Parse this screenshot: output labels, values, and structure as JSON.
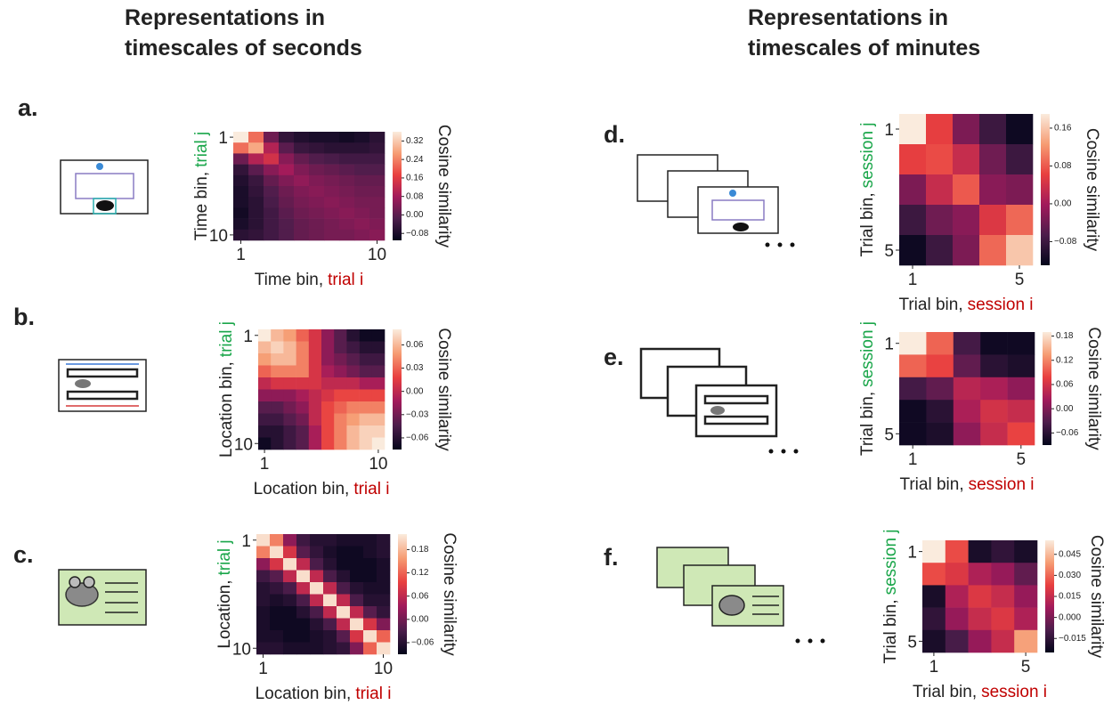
{
  "headers": [
    [
      "Representations in",
      "timescales of seconds"
    ],
    [
      "Representations in",
      "timescales of minutes"
    ]
  ],
  "colormap": [
    "#03051a",
    "#4c1d4b",
    "#a11a5b",
    "#e83f3f",
    "#f69c73",
    "#faebdd"
  ],
  "chart_data": [
    {
      "type": "heatmap",
      "panel": "a.",
      "xlabel": [
        "Time bin,",
        "trial i"
      ],
      "ylabel": [
        "Time bin,",
        "trial j"
      ],
      "xlabel_colors": [
        "#222222",
        "#c00000"
      ],
      "ylabel_colors": [
        "#222222",
        "#1aa64a"
      ],
      "colorbar_label": "Cosine similarity",
      "xlim": [
        0.5,
        10.5
      ],
      "ylim": [
        10.5,
        0.5
      ],
      "xticks": [
        1,
        10
      ],
      "yticks": [
        1,
        10
      ],
      "zlim": [
        -0.11,
        0.36
      ],
      "zticks": [
        0.32,
        0.24,
        0.16,
        0.08,
        {
          "value": 0,
          "label": "0.00"
        },
        {
          "value": -0.08,
          "label": "−0.08"
        }
      ],
      "values": [
        [
          0.36,
          0.22,
          0.02,
          -0.05,
          -0.07,
          -0.08,
          -0.08,
          -0.09,
          -0.08,
          -0.06
        ],
        [
          0.22,
          0.28,
          0.1,
          0.0,
          -0.04,
          -0.05,
          -0.06,
          -0.06,
          -0.06,
          -0.05
        ],
        [
          0.02,
          0.1,
          0.14,
          0.05,
          0.01,
          -0.01,
          -0.02,
          -0.03,
          -0.03,
          -0.03
        ],
        [
          -0.05,
          0.0,
          0.05,
          0.08,
          0.04,
          0.02,
          0.01,
          0.0,
          -0.01,
          -0.01
        ],
        [
          -0.07,
          -0.04,
          0.01,
          0.04,
          0.06,
          0.04,
          0.03,
          0.02,
          0.01,
          0.01
        ],
        [
          -0.08,
          -0.05,
          -0.01,
          0.02,
          0.04,
          0.05,
          0.04,
          0.03,
          0.02,
          0.02
        ],
        [
          -0.08,
          -0.06,
          -0.02,
          0.01,
          0.03,
          0.04,
          0.05,
          0.04,
          0.03,
          0.03
        ],
        [
          -0.09,
          -0.06,
          -0.03,
          0.0,
          0.02,
          0.03,
          0.04,
          0.05,
          0.04,
          0.03
        ],
        [
          -0.08,
          -0.06,
          -0.03,
          -0.01,
          0.01,
          0.02,
          0.03,
          0.04,
          0.05,
          0.04
        ],
        [
          -0.06,
          -0.05,
          -0.03,
          -0.01,
          0.01,
          0.02,
          0.03,
          0.03,
          0.04,
          0.05
        ]
      ]
    },
    {
      "type": "heatmap",
      "panel": "b.",
      "xlabel": [
        "Location bin,",
        "trial i"
      ],
      "ylabel": [
        "Location bin,",
        "trial j"
      ],
      "xlabel_colors": [
        "#222222",
        "#c00000"
      ],
      "ylabel_colors": [
        "#222222",
        "#1aa64a"
      ],
      "colorbar_label": "Cosine similarity",
      "xlim": [
        0.5,
        10.5
      ],
      "ylim": [
        10.5,
        0.5
      ],
      "xticks": [
        1,
        10
      ],
      "yticks": [
        1,
        10
      ],
      "zlim": [
        -0.075,
        0.08
      ],
      "zticks": [
        0.06,
        0.03,
        {
          "value": 0,
          "label": "0.00"
        },
        {
          "value": -0.03,
          "label": "−0.03"
        },
        {
          "value": -0.06,
          "label": "−0.06"
        }
      ],
      "values": [
        [
          0.08,
          0.06,
          0.05,
          0.03,
          0.01,
          -0.02,
          -0.04,
          -0.06,
          -0.07,
          -0.07
        ],
        [
          0.06,
          0.07,
          0.06,
          0.04,
          0.01,
          -0.02,
          -0.04,
          -0.05,
          -0.06,
          -0.06
        ],
        [
          0.05,
          0.06,
          0.06,
          0.04,
          0.01,
          -0.02,
          -0.03,
          -0.04,
          -0.05,
          -0.05
        ],
        [
          0.03,
          0.04,
          0.04,
          0.04,
          0.01,
          -0.01,
          -0.02,
          -0.03,
          -0.04,
          -0.04
        ],
        [
          0.0,
          0.01,
          0.01,
          0.01,
          0.01,
          0.0,
          0.0,
          0.0,
          -0.01,
          -0.01
        ],
        [
          -0.02,
          -0.02,
          -0.02,
          -0.01,
          0.0,
          0.01,
          0.02,
          0.02,
          0.02,
          0.02
        ],
        [
          -0.04,
          -0.04,
          -0.03,
          -0.02,
          0.0,
          0.02,
          0.03,
          0.04,
          0.04,
          0.04
        ],
        [
          -0.05,
          -0.05,
          -0.04,
          -0.03,
          0.0,
          0.02,
          0.04,
          0.05,
          0.06,
          0.06
        ],
        [
          -0.06,
          -0.06,
          -0.05,
          -0.04,
          -0.01,
          0.02,
          0.04,
          0.06,
          0.07,
          0.07
        ],
        [
          -0.07,
          -0.06,
          -0.05,
          -0.04,
          -0.01,
          0.02,
          0.04,
          0.06,
          0.07,
          0.08
        ]
      ]
    },
    {
      "type": "heatmap",
      "panel": "c.",
      "xlabel": [
        "Location bin,",
        "trial i"
      ],
      "ylabel": [
        "Location,",
        "trial j"
      ],
      "xlabel_colors": [
        "#222222",
        "#c00000"
      ],
      "ylabel_colors": [
        "#222222",
        "#1aa64a"
      ],
      "colorbar_label": "Cosine similarity",
      "xlim": [
        0.5,
        10.5
      ],
      "ylim": [
        10.5,
        0.5
      ],
      "xticks": [
        1,
        10
      ],
      "yticks": [
        1,
        10
      ],
      "zlim": [
        -0.09,
        0.22
      ],
      "zticks": [
        0.18,
        0.12,
        0.06,
        {
          "value": 0,
          "label": "0.00"
        },
        {
          "value": -0.06,
          "label": "−0.06"
        }
      ],
      "values": [
        [
          0.21,
          0.14,
          0.02,
          -0.04,
          -0.06,
          -0.06,
          -0.07,
          -0.07,
          -0.07,
          -0.06
        ],
        [
          0.14,
          0.21,
          0.08,
          -0.02,
          -0.05,
          -0.07,
          -0.08,
          -0.08,
          -0.07,
          -0.06
        ],
        [
          0.02,
          0.08,
          0.21,
          0.06,
          -0.03,
          -0.06,
          -0.08,
          -0.08,
          -0.08,
          -0.07
        ],
        [
          -0.04,
          -0.02,
          0.06,
          0.21,
          0.06,
          -0.03,
          -0.06,
          -0.08,
          -0.08,
          -0.07
        ],
        [
          -0.06,
          -0.05,
          -0.03,
          0.06,
          0.21,
          0.06,
          -0.03,
          -0.06,
          -0.07,
          -0.07
        ],
        [
          -0.06,
          -0.07,
          -0.06,
          -0.03,
          0.06,
          0.21,
          0.06,
          -0.03,
          -0.06,
          -0.06
        ],
        [
          -0.07,
          -0.08,
          -0.08,
          -0.06,
          -0.03,
          0.06,
          0.21,
          0.06,
          -0.02,
          -0.05
        ],
        [
          -0.07,
          -0.08,
          -0.08,
          -0.08,
          -0.06,
          -0.03,
          0.06,
          0.21,
          0.08,
          0.01
        ],
        [
          -0.07,
          -0.07,
          -0.08,
          -0.08,
          -0.07,
          -0.06,
          -0.02,
          0.08,
          0.21,
          0.12
        ],
        [
          -0.06,
          -0.06,
          -0.07,
          -0.07,
          -0.07,
          -0.06,
          -0.05,
          0.01,
          0.12,
          0.21
        ]
      ]
    },
    {
      "type": "heatmap",
      "panel": "d.",
      "xlabel": [
        "Trial bin,",
        "session i"
      ],
      "ylabel": [
        "Trial bin,",
        "session j"
      ],
      "xlabel_colors": [
        "#222222",
        "#c00000"
      ],
      "ylabel_colors": [
        "#222222",
        "#1aa64a"
      ],
      "colorbar_label": "Cosine similarity",
      "xlim": [
        0.5,
        5.5
      ],
      "ylim": [
        5.5,
        0.5
      ],
      "xticks": [
        1,
        5
      ],
      "yticks": [
        1,
        5
      ],
      "zlim": [
        -0.13,
        0.19
      ],
      "zticks": [
        0.16,
        0.08,
        {
          "value": 0,
          "label": "0.00"
        },
        {
          "value": -0.08,
          "label": "−0.08"
        }
      ],
      "values": [
        [
          0.19,
          0.06,
          -0.03,
          -0.08,
          -0.12
        ],
        [
          0.06,
          0.07,
          0.03,
          -0.04,
          -0.08
        ],
        [
          -0.03,
          0.03,
          0.08,
          -0.02,
          -0.03
        ],
        [
          -0.08,
          -0.04,
          -0.02,
          0.05,
          0.09
        ],
        [
          -0.12,
          -0.08,
          -0.03,
          0.09,
          0.16
        ]
      ]
    },
    {
      "type": "heatmap",
      "panel": "e.",
      "xlabel": [
        "Trial bin,",
        "session i"
      ],
      "ylabel": [
        "Trial bin,",
        "session j"
      ],
      "xlabel_colors": [
        "#222222",
        "#c00000"
      ],
      "ylabel_colors": [
        "#222222",
        "#1aa64a"
      ],
      "colorbar_label": "Cosine similarity",
      "xlim": [
        0.5,
        5.5
      ],
      "ylim": [
        5.5,
        0.5
      ],
      "xticks": [
        1,
        5
      ],
      "yticks": [
        1,
        5
      ],
      "zlim": [
        -0.09,
        0.19
      ],
      "zticks": [
        0.18,
        0.12,
        0.06,
        {
          "value": 0,
          "label": "0.00"
        },
        {
          "value": -0.06,
          "label": "−0.06"
        }
      ],
      "values": [
        [
          0.19,
          0.1,
          -0.04,
          -0.08,
          -0.08
        ],
        [
          0.1,
          0.08,
          -0.02,
          -0.06,
          -0.07
        ],
        [
          -0.04,
          -0.02,
          0.04,
          0.03,
          0.01
        ],
        [
          -0.08,
          -0.06,
          0.03,
          0.06,
          0.05
        ],
        [
          -0.08,
          -0.07,
          0.01,
          0.05,
          0.08
        ]
      ]
    },
    {
      "type": "heatmap",
      "panel": "f.",
      "xlabel": [
        "Trial bin,",
        "session i"
      ],
      "ylabel": [
        "Trial bin,",
        "session j"
      ],
      "xlabel_colors": [
        "#222222",
        "#c00000"
      ],
      "ylabel_colors": [
        "#222222",
        "#1aa64a"
      ],
      "colorbar_label": "Cosine similarity",
      "xlim": [
        0.5,
        5.5
      ],
      "ylim": [
        5.5,
        0.5
      ],
      "xticks": [
        1,
        5
      ],
      "yticks": [
        1,
        5
      ],
      "zlim": [
        -0.025,
        0.055
      ],
      "zticks": [
        0.045,
        {
          "value": 0.03,
          "label": "0.030"
        },
        0.015,
        {
          "value": 0,
          "label": "0.000"
        },
        {
          "value": -0.015,
          "label": "−0.015"
        }
      ],
      "values": [
        [
          0.055,
          0.025,
          -0.02,
          -0.015,
          -0.02
        ],
        [
          0.025,
          0.02,
          0.01,
          0.005,
          -0.005
        ],
        [
          -0.02,
          0.01,
          0.02,
          0.015,
          0.005
        ],
        [
          -0.015,
          0.005,
          0.015,
          0.02,
          0.01
        ],
        [
          -0.02,
          -0.01,
          0.005,
          0.015,
          0.04
        ]
      ]
    }
  ]
}
